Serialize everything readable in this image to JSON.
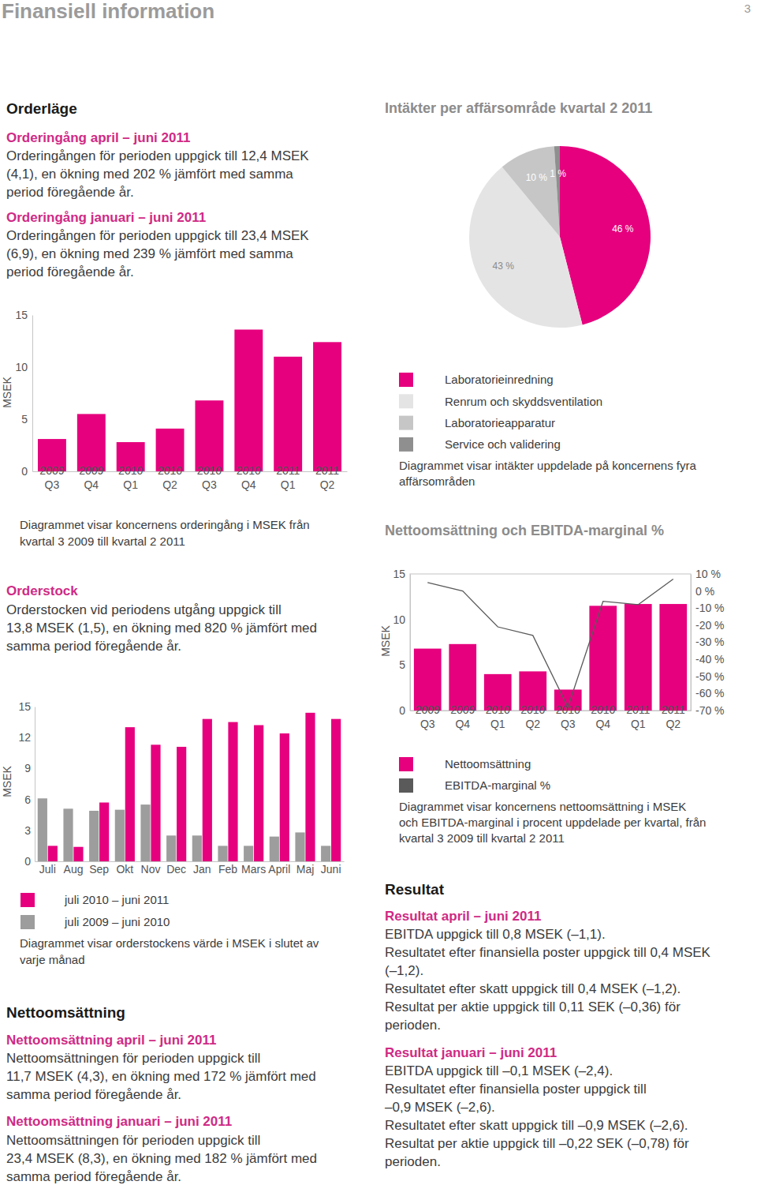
{
  "text": {
    "page_title": "Finansiell information",
    "page_number": "3",
    "orderlage": "Orderläge",
    "orderingang_q2_heading": "Orderingång april – juni 2011",
    "orderingang_q2_lines": [
      "Orderingången för perioden uppgick till 12,4 MSEK",
      "(4,1), en ökning med 202 % jämfört med samma",
      "period föregående år."
    ],
    "orderingang_h1_heading": "Orderingång januari – juni 2011",
    "orderingang_h1_lines": [
      "Orderingången för perioden uppgick till 23,4 MSEK",
      "(6,9), en ökning med 239 % jämfört med samma",
      "period föregående år."
    ],
    "orderstock_heading": "Orderstock",
    "orderstock_lines": [
      "Orderstocken vid periodens utgång uppgick till",
      "13,8 MSEK (1,5), en ökning med 820 % jämfört med",
      "samma period föregående år."
    ],
    "nettoomsattning": "Nettoomsättning",
    "netto_q2_heading": "Nettoomsättning april – juni 2011",
    "netto_q2_lines": [
      "Nettoomsättningen för perioden uppgick till",
      "11,7 MSEK (4,3), en ökning med 172 % jämfört med",
      "samma period föregående år."
    ],
    "netto_h1_heading": "Nettoomsättning januari – juni 2011",
    "netto_h1_lines": [
      "Nettoomsättningen för perioden uppgick till",
      "23,4 MSEK (8,3), en ökning med 182 % jämfört med",
      "samma period föregående år."
    ],
    "resultat": "Resultat",
    "resultat_q2_heading": "Resultat april – juni 2011",
    "resultat_q2_lines": [
      "EBITDA uppgick till 0,8 MSEK (–1,1).",
      "Resultatet efter finansiella poster uppgick till 0,4 MSEK",
      "(–1,2).",
      "Resultatet efter skatt uppgick till 0,4 MSEK (–1,2).",
      "Resultat per aktie uppgick till 0,11 SEK (–0,36) för",
      "perioden."
    ],
    "resultat_h1_heading": "Resultat januari – juni 2011",
    "resultat_h1_lines": [
      "EBITDA uppgick till –0,1 MSEK (–2,4).",
      "Resultatet efter finansiella poster uppgick till",
      "–0,9 MSEK (–2,6).",
      "Resultatet efter skatt uppgick till –0,9 MSEK (–2,6).",
      "Resultat per aktie uppgick till –0,22 SEK (–0,78) för",
      "perioden."
    ]
  },
  "chart_data": [
    {
      "type": "bar",
      "y_label": "MSEK",
      "categories": [
        "2009 Q3",
        "2009 Q4",
        "2010 Q1",
        "2010 Q2",
        "2010 Q3",
        "2010 Q4",
        "2011 Q1",
        "2011 Q2"
      ],
      "values": [
        3.1,
        5.5,
        2.8,
        4.1,
        6.8,
        13.6,
        11.0,
        12.4
      ],
      "color": "#e6007e",
      "ylim": [
        0,
        15
      ],
      "yticks": [
        0,
        5,
        10,
        15
      ],
      "caption": [
        "Diagrammet visar koncernens orderingång i MSEK från",
        "kvartal 3 2009 till kvartal 2 2011"
      ]
    },
    {
      "type": "pie",
      "title": "Intäkter per affärsområde kvartal 2 2011",
      "categories": [
        "Laboratorieinredning",
        "Renrum och skyddsventilation",
        "Laboratorieapparatur",
        "Service och validering"
      ],
      "values": [
        46,
        43,
        10,
        1
      ],
      "value_labels": [
        "46 %",
        "43 %",
        "10 %",
        "1 %"
      ],
      "colors": [
        "#e6007e",
        "#e4e4e4",
        "#c6c6c6",
        "#8f8f8f"
      ],
      "data_labels": true,
      "legend": "bottom",
      "caption": [
        "Diagrammet visar intäkter uppdelade på koncernens fyra",
        "affärsområden"
      ]
    },
    {
      "type": "bar",
      "y_label": "MSEK",
      "categories": [
        "Juli",
        "Aug",
        "Sep",
        "Okt",
        "Nov",
        "Dec",
        "Jan",
        "Feb",
        "Mars",
        "April",
        "Maj",
        "Juni"
      ],
      "series": [
        {
          "name": "juli 2010 – juni 2011",
          "color": "#e6007e",
          "values": [
            1.5,
            1.4,
            5.7,
            13.0,
            11.3,
            11.1,
            13.8,
            13.5,
            13.2,
            12.4,
            14.4,
            13.8
          ]
        },
        {
          "name": "juli 2009 – juni 2010",
          "color": "#9d9d9d",
          "values": [
            6.1,
            5.1,
            4.9,
            5.0,
            5.5,
            2.5,
            2.5,
            1.5,
            1.5,
            2.4,
            2.8,
            1.5
          ]
        }
      ],
      "ylim": [
        0,
        15
      ],
      "yticks": [
        0,
        3,
        6,
        9,
        12,
        15
      ],
      "legend": "bottom",
      "caption": [
        "Diagrammet visar orderstockens värde i MSEK i slutet av",
        "varje månad"
      ]
    },
    {
      "type": "bar",
      "title": "Nettoomsättning och EBITDA-marginal %",
      "y_label": "MSEK",
      "categories": [
        "2009 Q3",
        "2009 Q4",
        "2010 Q1",
        "2010 Q2",
        "2010 Q3",
        "2010 Q4",
        "2011 Q1",
        "2011 Q2"
      ],
      "series": [
        {
          "name": "Nettoomsättning",
          "type": "bar",
          "color": "#e6007e",
          "values": [
            6.8,
            7.3,
            4.0,
            4.3,
            2.3,
            11.5,
            11.7,
            11.7
          ]
        },
        {
          "name": "EBITDA-marginal %",
          "type": "line",
          "axis": "y2",
          "color": "#5a5a5a",
          "values": [
            5,
            0,
            -21,
            -26,
            -68,
            -6,
            -8,
            7
          ]
        }
      ],
      "ylim": [
        0,
        15
      ],
      "yticks": [
        0,
        5,
        10,
        15
      ],
      "y2lim": [
        -70,
        10
      ],
      "y2ticks": [
        {
          "value": 10,
          "label": "10 %"
        },
        {
          "value": 0,
          "label": "0 %"
        },
        {
          "value": -10,
          "label": "-10 %"
        },
        {
          "value": -20,
          "label": "-20 %"
        },
        {
          "value": -30,
          "label": "-30 %"
        },
        {
          "value": -40,
          "label": "-40 %"
        },
        {
          "value": -50,
          "label": "-50 %"
        },
        {
          "value": -60,
          "label": "-60 %"
        },
        {
          "value": -70,
          "label": "-70 %"
        }
      ],
      "legend": "bottom",
      "caption": [
        "Diagrammet visar koncernens nettoomsättning i MSEK",
        "och EBITDA-marginal i procent uppdelade per kvartal, från",
        "kvartal 3 2009 till kvartal 2 2011"
      ]
    }
  ]
}
